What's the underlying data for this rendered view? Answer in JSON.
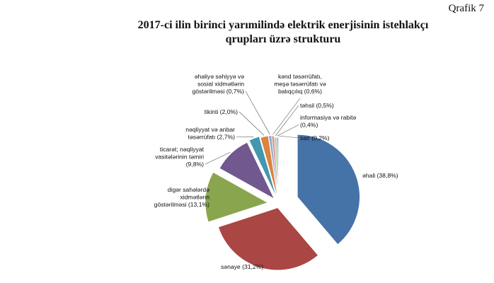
{
  "page": {
    "corner_label": "Qrafik 7"
  },
  "chart_data": {
    "type": "pie",
    "title_lines": [
      "2017-ci ilin birinci yarımilində elektrik enerjisinin istehlakçı",
      "qrupları üzrə strukturu"
    ],
    "slices": [
      {
        "label_lines": [
          "əhali (38,8%)"
        ],
        "value": 38.8,
        "color": "#4572a7"
      },
      {
        "label_lines": [
          "sənaye (31,2%)"
        ],
        "value": 31.2,
        "color": "#aa4643"
      },
      {
        "label_lines": [
          "digər sahələrdə",
          "xidmətlərin",
          "göstərilməsi (13,1%)"
        ],
        "value": 13.1,
        "color": "#89a54e"
      },
      {
        "label_lines": [
          "ticarət; nəqliyyat",
          "vasitələrinin təmiri",
          "(9,8%)"
        ],
        "value": 9.8,
        "color": "#71588f"
      },
      {
        "label_lines": [
          "nəqliyyat və anbar",
          "təsərrüfatı (2,7%)"
        ],
        "value": 2.7,
        "color": "#4198af"
      },
      {
        "label_lines": [
          "tikinti (2,0%)"
        ],
        "value": 2.0,
        "color": "#db843d"
      },
      {
        "label_lines": [
          "əhaliyə səhiyyə və",
          "sosial xidmətlərin",
          "göstərilməsi (0,7%)"
        ],
        "value": 0.7,
        "color": "#93a9cf"
      },
      {
        "label_lines": [
          "kənd təsərrüfatı,",
          "meşə təsərrüfatı və",
          "balıqçılıq (0,6%)"
        ],
        "value": 0.6,
        "color": "#d19392"
      },
      {
        "label_lines": [
          "təhsil (0,5%)"
        ],
        "value": 0.5,
        "color": "#b9cd96"
      },
      {
        "label_lines": [
          "informasiya və rabitə",
          "(0,4%)"
        ],
        "value": 0.4,
        "color": "#a99bbd"
      },
      {
        "label_lines": [
          "sair (0,2%)"
        ],
        "value": 0.2,
        "color": "#91c3d5"
      }
    ],
    "start_angle_deg": 0,
    "direction": "clockwise",
    "exploded": true,
    "legend": "none"
  }
}
